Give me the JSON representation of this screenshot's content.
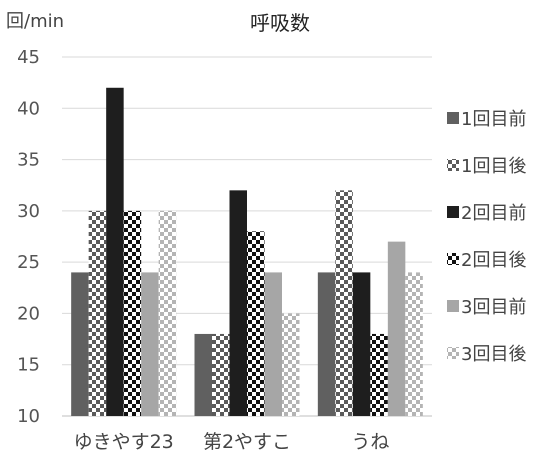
{
  "chart_data": {
    "type": "bar",
    "title": "呼吸数",
    "ylabel": "回/min",
    "xlabel": "",
    "ylim": [
      10,
      45
    ],
    "yticks": [
      "10",
      "15",
      "20",
      "25",
      "30",
      "35",
      "40",
      "45"
    ],
    "grid": true,
    "legend_position": "right",
    "categories": [
      "ゆきやす23",
      "第2やすこ",
      "うね"
    ],
    "series": [
      {
        "name": "1回目前",
        "values": [
          24,
          18,
          24
        ],
        "color": "#606060",
        "pattern": "solid"
      },
      {
        "name": "1回目後",
        "values": [
          30,
          18,
          32
        ],
        "color": "#606060",
        "pattern": "check-dark"
      },
      {
        "name": "2回目前",
        "values": [
          42,
          32,
          24
        ],
        "color": "#1e1e1e",
        "pattern": "solid"
      },
      {
        "name": "2回目後",
        "values": [
          30,
          28,
          18
        ],
        "color": "#1e1e1e",
        "pattern": "check-black"
      },
      {
        "name": "3回目前",
        "values": [
          24,
          24,
          27
        ],
        "color": "#a6a6a6",
        "pattern": "solid"
      },
      {
        "name": "3回目後",
        "values": [
          30,
          20,
          24
        ],
        "color": "#a6a6a6",
        "pattern": "check-light"
      }
    ]
  }
}
